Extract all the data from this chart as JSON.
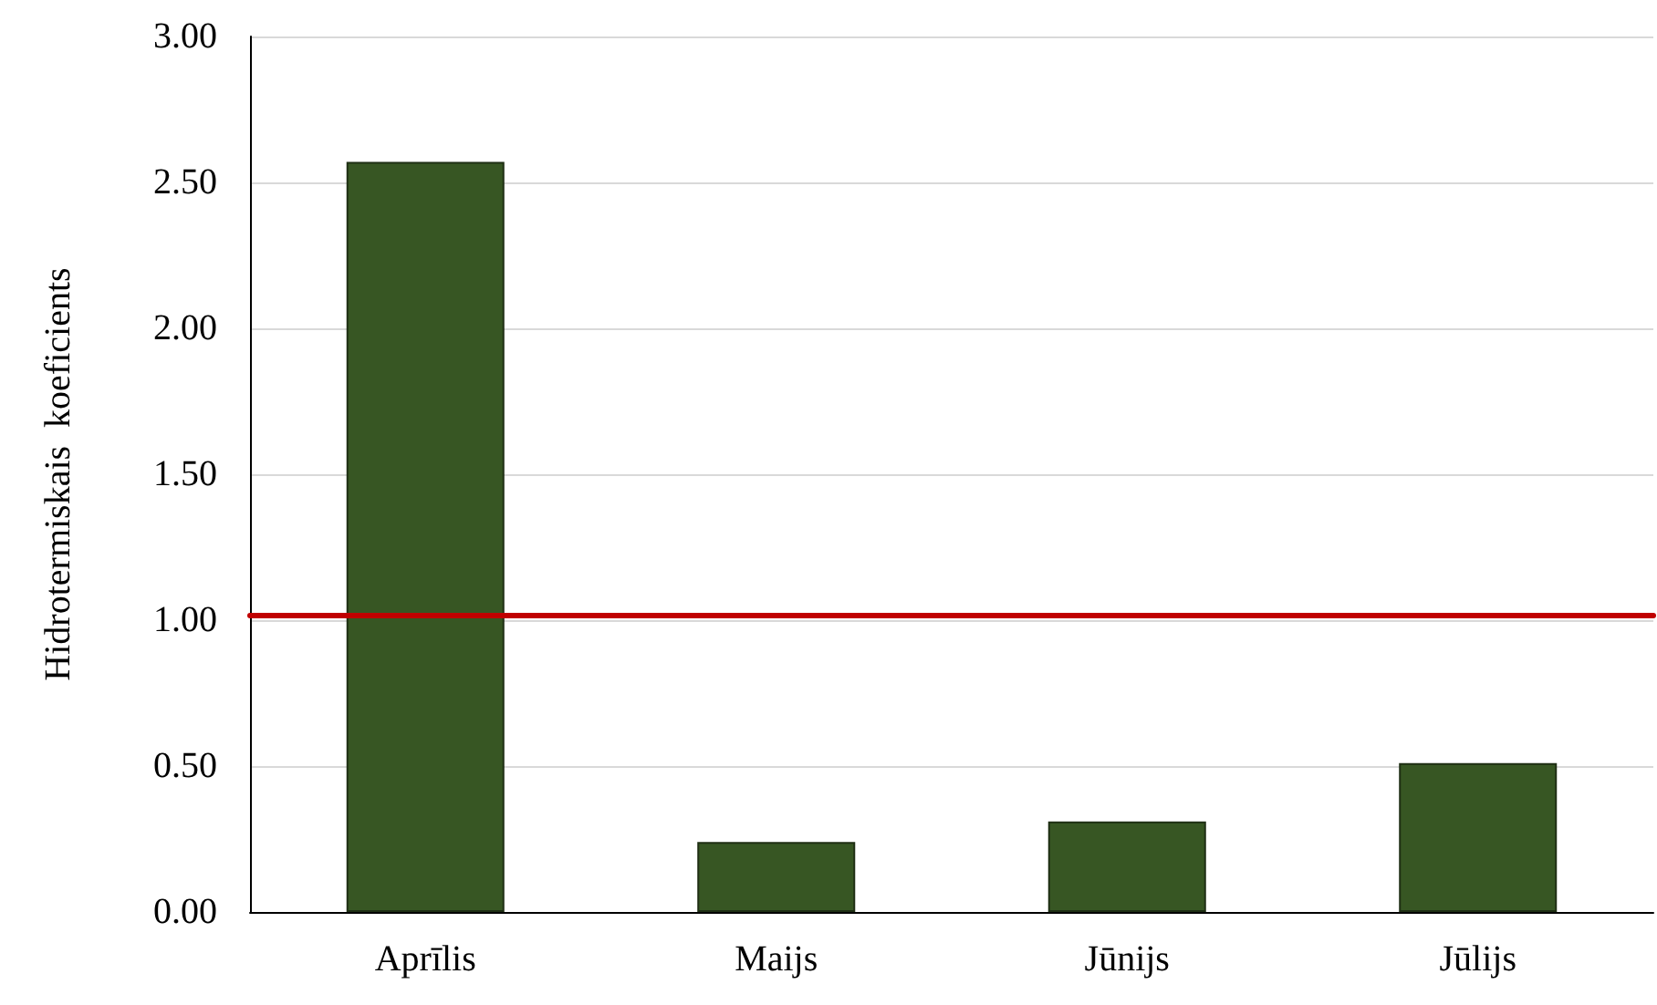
{
  "chart_data": {
    "type": "bar",
    "ylabel": "Hidrotermiskais  koeficients",
    "categories": [
      "Aprīlis",
      "Maijs",
      "Jūnijs",
      "Jūlijs"
    ],
    "values": [
      2.57,
      0.24,
      0.31,
      0.51
    ],
    "color": "#375623",
    "ylim": [
      0,
      3
    ],
    "yticks": [
      {
        "value": 0,
        "label": "0.00"
      },
      {
        "value": 0.5,
        "label": "0.50"
      },
      {
        "value": 1,
        "label": "1.00"
      },
      {
        "value": 1.5,
        "label": "1.50"
      },
      {
        "value": 2,
        "label": "2.00"
      },
      {
        "value": 2.5,
        "label": "2.50"
      },
      {
        "value": 3,
        "label": "3.00"
      }
    ],
    "grid": "y",
    "ref_lines": [
      {
        "axis": "y",
        "value": 1.02,
        "color": "#c00000",
        "line_style": "solid"
      }
    ]
  }
}
